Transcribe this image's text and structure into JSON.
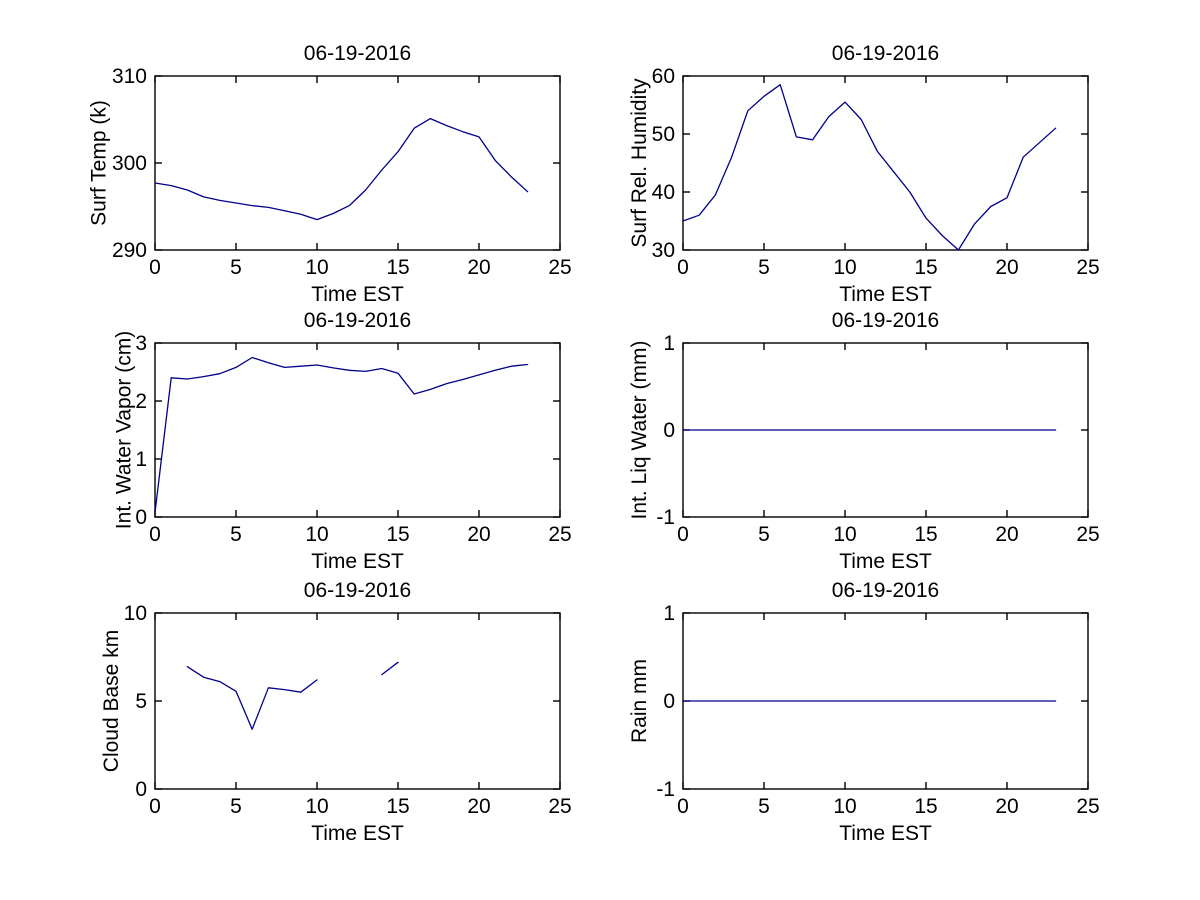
{
  "figure": {
    "background": "#ffffff",
    "line_color": "#00008B",
    "date": "06-19-2016"
  },
  "chart_data": [
    {
      "id": "surf-temp",
      "type": "line",
      "title": "06-19-2016",
      "xlabel": "Time EST",
      "ylabel": "Surf Temp (k)",
      "xlim": [
        0,
        25
      ],
      "ylim": [
        290,
        310
      ],
      "xticks": [
        0,
        5,
        10,
        15,
        20,
        25
      ],
      "yticks": [
        290,
        300,
        310
      ],
      "grid": false,
      "series": [
        {
          "name": "surface temperature",
          "x": [
            0,
            1,
            2,
            3,
            4,
            5,
            6,
            7,
            8,
            9,
            10,
            11,
            12,
            13,
            14,
            15,
            16,
            17,
            18,
            19,
            20,
            21,
            22,
            23
          ],
          "y": [
            297.7,
            297.4,
            296.9,
            296.1,
            295.7,
            295.4,
            295.1,
            294.9,
            294.5,
            294.1,
            293.5,
            294.2,
            295.1,
            296.9,
            299.2,
            301.3,
            304.0,
            305.1,
            304.3,
            303.6,
            303.0,
            300.3,
            298.4,
            296.7
          ]
        }
      ]
    },
    {
      "id": "surf-rel-humidity",
      "type": "line",
      "title": "06-19-2016",
      "xlabel": "Time EST",
      "ylabel": "Surf Rel. Humidity",
      "xlim": [
        0,
        25
      ],
      "ylim": [
        30,
        60
      ],
      "xticks": [
        0,
        5,
        10,
        15,
        20,
        25
      ],
      "yticks": [
        30,
        40,
        50,
        60
      ],
      "grid": false,
      "series": [
        {
          "name": "surface relative humidity",
          "x": [
            0,
            1,
            2,
            3,
            4,
            5,
            6,
            7,
            8,
            9,
            10,
            11,
            12,
            13,
            14,
            15,
            16,
            17,
            18,
            19,
            20,
            21,
            22,
            23
          ],
          "y": [
            35,
            36,
            39.5,
            46,
            54,
            56.5,
            58.5,
            49.5,
            49,
            53,
            55.5,
            52.5,
            47,
            43.5,
            40,
            35.5,
            32.5,
            30,
            34.5,
            37.5,
            39,
            46,
            48.5,
            51
          ]
        }
      ]
    },
    {
      "id": "int-water-vapor",
      "type": "line",
      "title": "06-19-2016",
      "xlabel": "Time EST",
      "ylabel": "Int. Water Vapor (cm)",
      "xlim": [
        0,
        25
      ],
      "ylim": [
        0,
        3
      ],
      "xticks": [
        0,
        5,
        10,
        15,
        20,
        25
      ],
      "yticks": [
        0,
        1,
        2,
        3
      ],
      "grid": false,
      "series": [
        {
          "name": "integrated water vapor",
          "x": [
            0,
            1,
            2,
            3,
            4,
            5,
            6,
            7,
            8,
            9,
            10,
            11,
            12,
            13,
            14,
            15,
            16,
            17,
            18,
            19,
            20,
            21,
            22,
            23
          ],
          "y": [
            0.08,
            2.4,
            2.38,
            2.42,
            2.47,
            2.58,
            2.75,
            2.66,
            2.58,
            2.6,
            2.62,
            2.57,
            2.53,
            2.51,
            2.56,
            2.48,
            2.12,
            2.2,
            2.3,
            2.37,
            2.45,
            2.53,
            2.6,
            2.63
          ]
        }
      ]
    },
    {
      "id": "int-liq-water",
      "type": "line",
      "title": "06-19-2016",
      "xlabel": "Time EST",
      "ylabel": "Int. Liq Water (mm)",
      "xlim": [
        0,
        25
      ],
      "ylim": [
        -1,
        1
      ],
      "xticks": [
        0,
        5,
        10,
        15,
        20,
        25
      ],
      "yticks": [
        -1,
        0,
        1
      ],
      "grid": false,
      "series": [
        {
          "name": "integrated liquid water",
          "x": [
            0,
            1,
            2,
            3,
            4,
            5,
            6,
            7,
            8,
            9,
            10,
            11,
            12,
            13,
            14,
            15,
            16,
            17,
            18,
            19,
            20,
            21,
            22,
            23
          ],
          "y": [
            0,
            0,
            0,
            0,
            0,
            0,
            0,
            0,
            0,
            0,
            0,
            0,
            0,
            0,
            0,
            0,
            0,
            0,
            0,
            0,
            0,
            0,
            0,
            0
          ]
        }
      ]
    },
    {
      "id": "cloud-base",
      "type": "line",
      "title": "06-19-2016",
      "xlabel": "Time EST",
      "ylabel": "Cloud Base km",
      "xlim": [
        0,
        25
      ],
      "ylim": [
        0,
        10
      ],
      "xticks": [
        0,
        5,
        10,
        15,
        20,
        25
      ],
      "yticks": [
        0,
        5,
        10
      ],
      "grid": false,
      "series": [
        {
          "name": "cloud base segment 1",
          "x": [
            2,
            3,
            4,
            5,
            6,
            7,
            8,
            9,
            10
          ],
          "y": [
            6.95,
            6.35,
            6.1,
            5.55,
            3.4,
            5.75,
            5.65,
            5.5,
            6.2
          ]
        },
        {
          "name": "cloud base segment 2",
          "x": [
            14,
            15
          ],
          "y": [
            6.5,
            7.2
          ]
        }
      ]
    },
    {
      "id": "rain",
      "type": "line",
      "title": "06-19-2016",
      "xlabel": "Time EST",
      "ylabel": "Rain mm",
      "xlim": [
        0,
        25
      ],
      "ylim": [
        -1,
        1
      ],
      "xticks": [
        0,
        5,
        10,
        15,
        20,
        25
      ],
      "yticks": [
        -1,
        0,
        1
      ],
      "grid": false,
      "series": [
        {
          "name": "rain",
          "x": [
            0,
            1,
            2,
            3,
            4,
            5,
            6,
            7,
            8,
            9,
            10,
            11,
            12,
            13,
            14,
            15,
            16,
            17,
            18,
            19,
            20,
            21,
            22,
            23
          ],
          "y": [
            0,
            0,
            0,
            0,
            0,
            0,
            0,
            0,
            0,
            0,
            0,
            0,
            0,
            0,
            0,
            0,
            0,
            0,
            0,
            0,
            0,
            0,
            0,
            0
          ]
        }
      ]
    }
  ]
}
